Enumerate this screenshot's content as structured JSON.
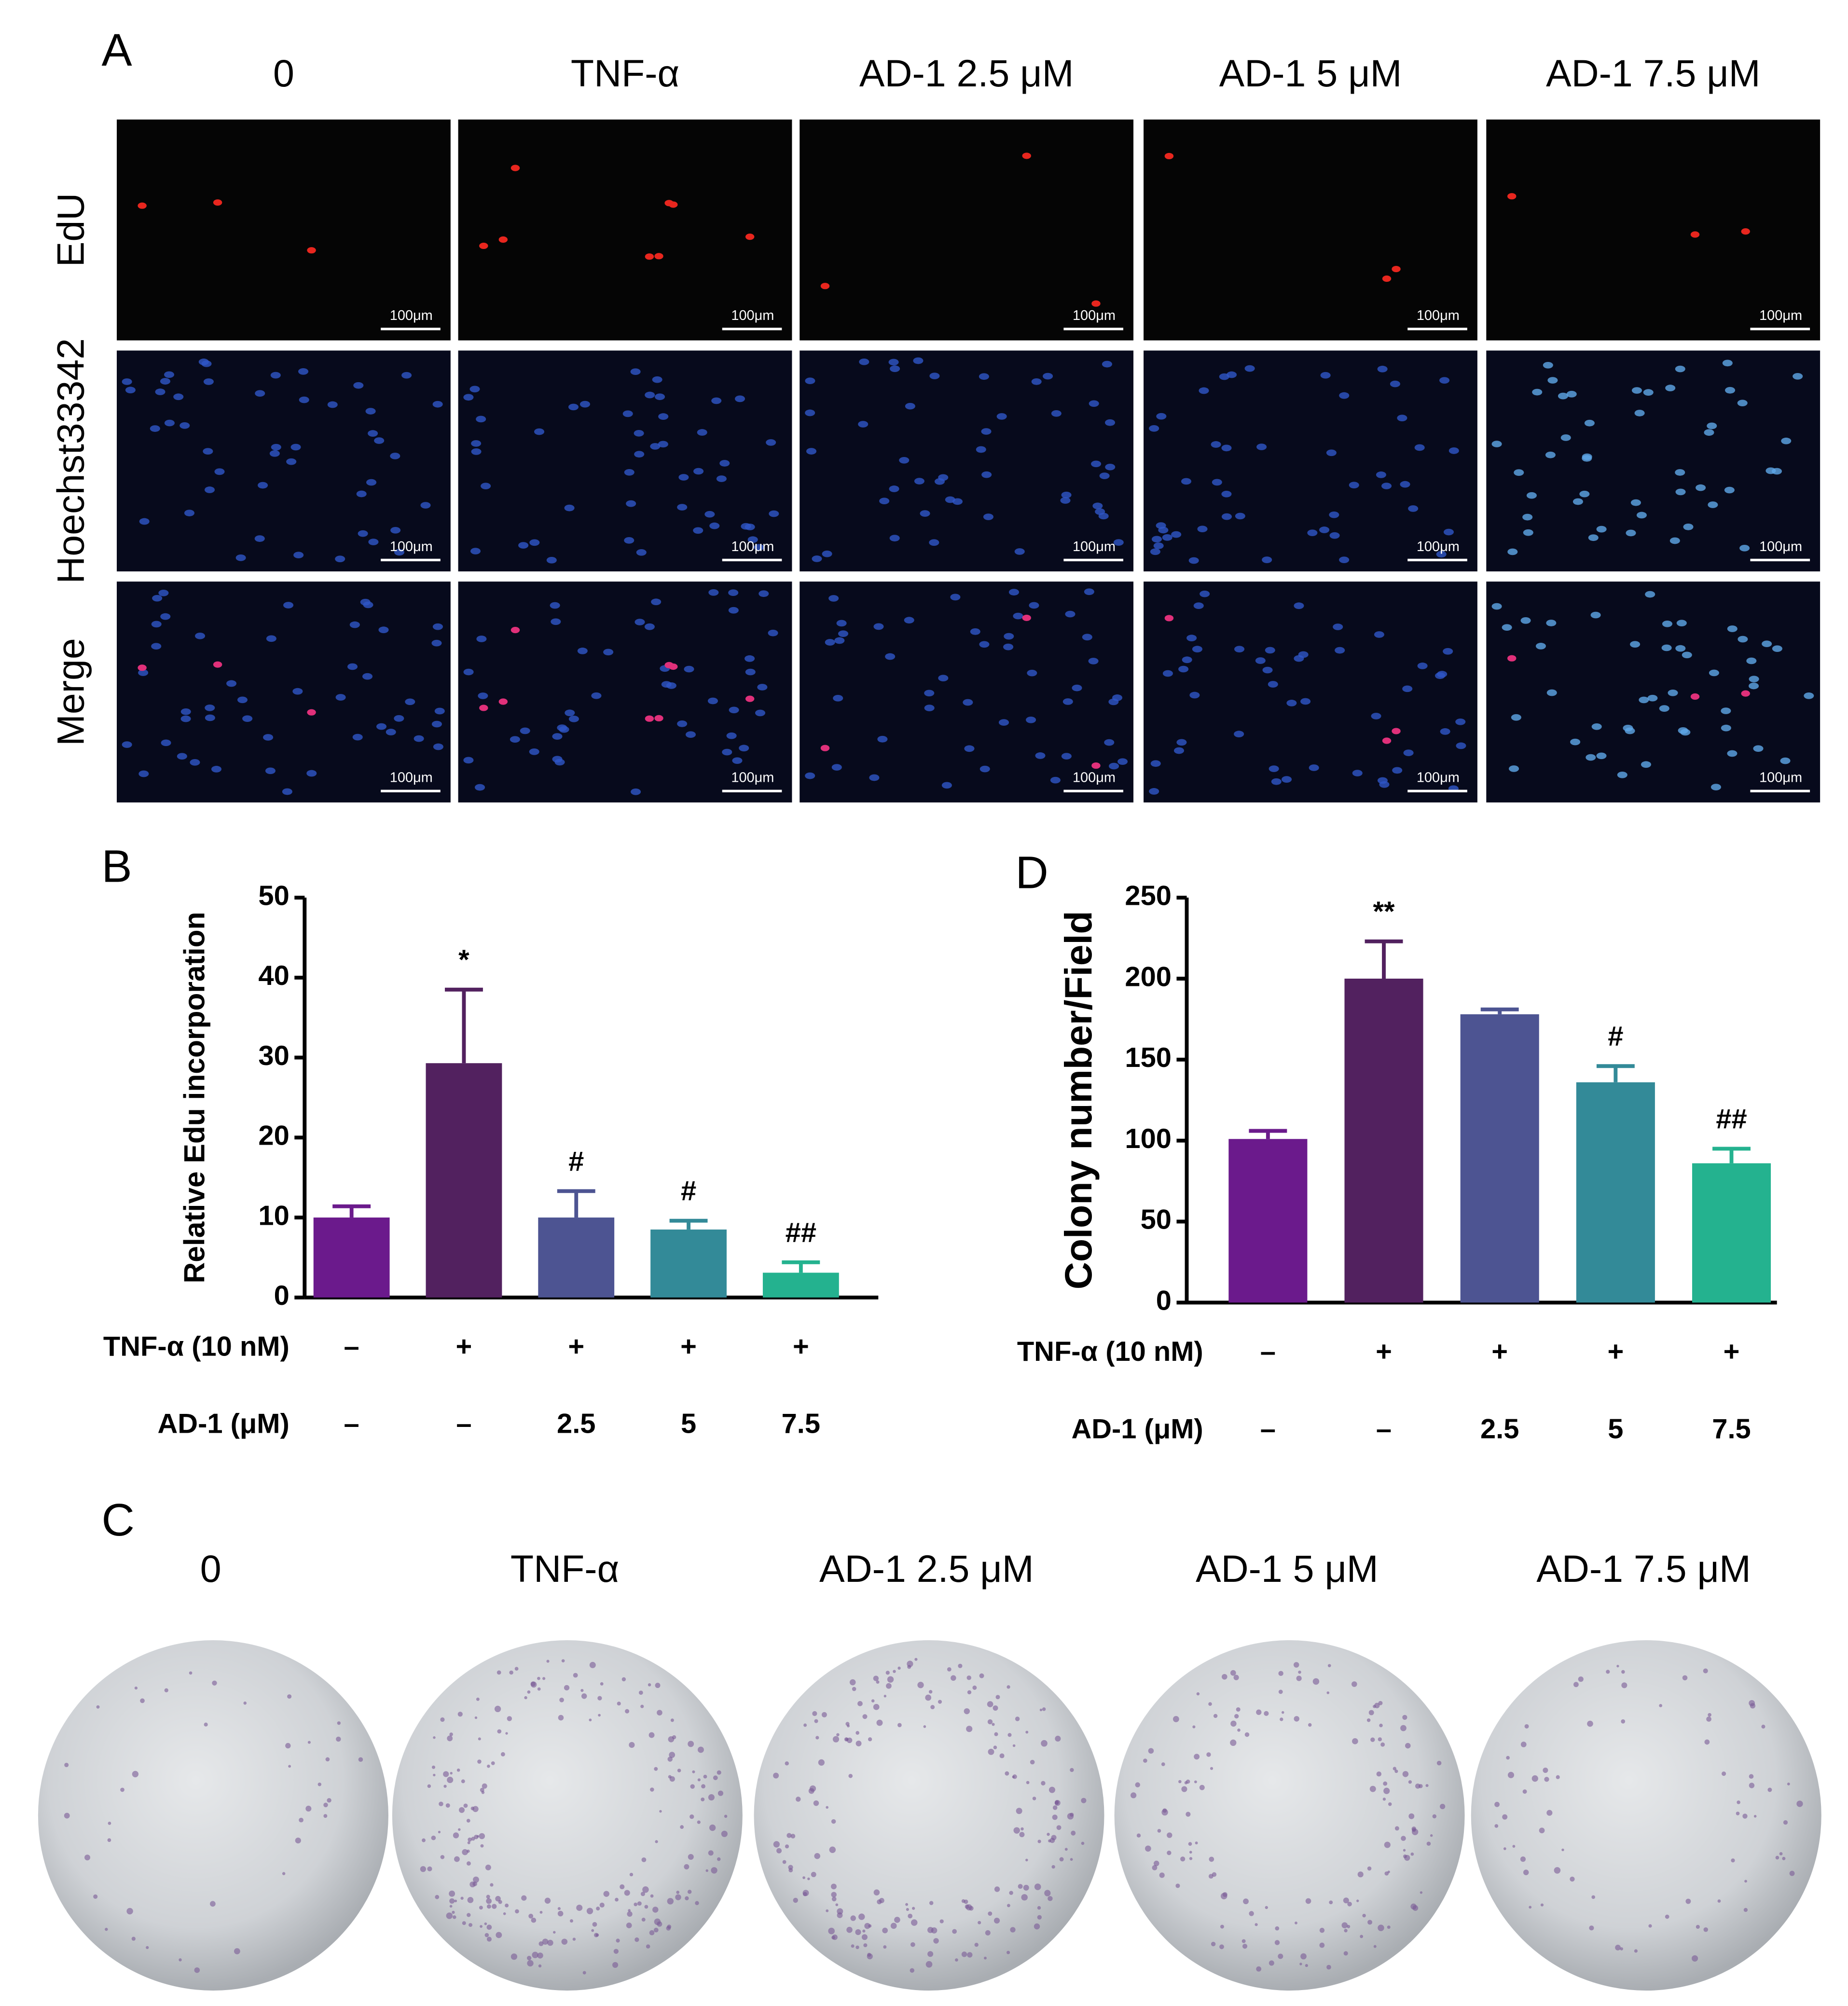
{
  "panel_labels": [
    "A",
    "B",
    "C",
    "D"
  ],
  "panel_a": {
    "columns": [
      "0",
      "TNF-α",
      "AD-1 2.5 μM",
      "AD-1 5 μM",
      "AD-1 7.5 μM"
    ],
    "rows": [
      "EdU",
      "Hoechst33342",
      "Merge"
    ],
    "scale_bar": "100μm"
  },
  "panel_c": {
    "columns": [
      "0",
      "TNF-α",
      "AD-1 2.5 μM",
      "AD-1 5 μM",
      "AD-1 7.5 μM"
    ]
  },
  "chart_data": [
    {
      "type": "bar",
      "ylabel": "Relative Edu incorporation",
      "values": [
        10,
        29.3,
        10,
        8.5,
        3.1
      ],
      "errors": [
        1.4,
        9.2,
        3.3,
        1.1,
        1.3
      ],
      "annotations": [
        null,
        "*",
        "#",
        "#",
        "##"
      ],
      "colors": [
        "#6b1a8c",
        "#52215f",
        "#4d5492",
        "#338a98",
        "#24b28f"
      ],
      "ylim": [
        0,
        50
      ],
      "yticks": [
        0,
        10,
        20,
        30,
        40,
        50
      ],
      "treatment_rows": [
        {
          "label": "TNF-α (10 nM)",
          "entries": [
            "–",
            "+",
            "+",
            "+",
            "+"
          ]
        },
        {
          "label": "AD-1 (μM)",
          "entries": [
            "–",
            "–",
            "2.5",
            "5",
            "7.5"
          ]
        }
      ]
    },
    {
      "type": "bar",
      "ylabel": "Colony number/Field",
      "values": [
        101,
        200,
        178,
        136,
        86
      ],
      "errors": [
        5,
        23,
        3,
        10,
        9
      ],
      "annotations": [
        null,
        "**",
        null,
        "#",
        "##"
      ],
      "colors": [
        "#6b1a8c",
        "#52215f",
        "#4d5492",
        "#338a98",
        "#24b28f"
      ],
      "ylim": [
        0,
        250
      ],
      "yticks": [
        0,
        50,
        100,
        150,
        200,
        250
      ],
      "treatment_rows": [
        {
          "label": "TNF-α (10 nM)",
          "entries": [
            "–",
            "+",
            "+",
            "+",
            "+"
          ]
        },
        {
          "label": "AD-1 (μM)",
          "entries": [
            "–",
            "–",
            "2.5",
            "5",
            "7.5"
          ]
        }
      ]
    }
  ]
}
